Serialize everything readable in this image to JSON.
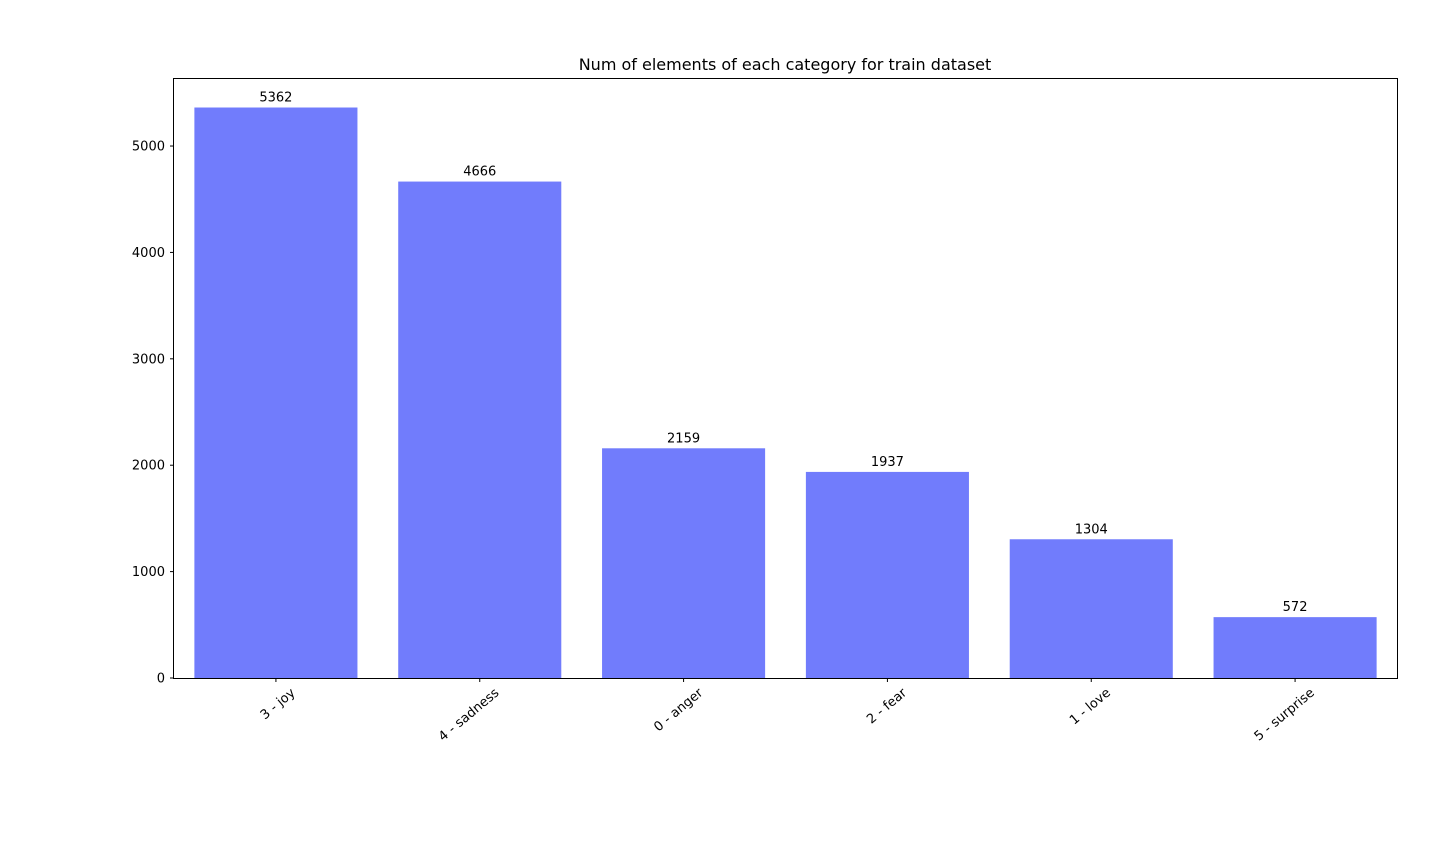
{
  "chart_data": {
    "type": "bar",
    "title": "Num of elements of each category for train dataset",
    "xlabel": "",
    "ylabel": "",
    "categories": [
      "3 - joy",
      "4 - sadness",
      "0 - anger",
      "2 - fear",
      "1 - love",
      "5 - surprise"
    ],
    "values": [
      5362,
      4666,
      2159,
      1937,
      1304,
      572
    ],
    "data_labels": [
      "5362",
      "4666",
      "2159",
      "1937",
      "1304",
      "572"
    ],
    "yticks": [
      0,
      1000,
      2000,
      3000,
      4000,
      5000
    ],
    "ytick_labels": [
      "0",
      "1000",
      "2000",
      "3000",
      "4000",
      "5000"
    ],
    "ylim": [
      0,
      5630
    ],
    "grid": false,
    "legend": "none",
    "bar_color": "#717cfc",
    "xtick_rotation_deg": 40
  }
}
